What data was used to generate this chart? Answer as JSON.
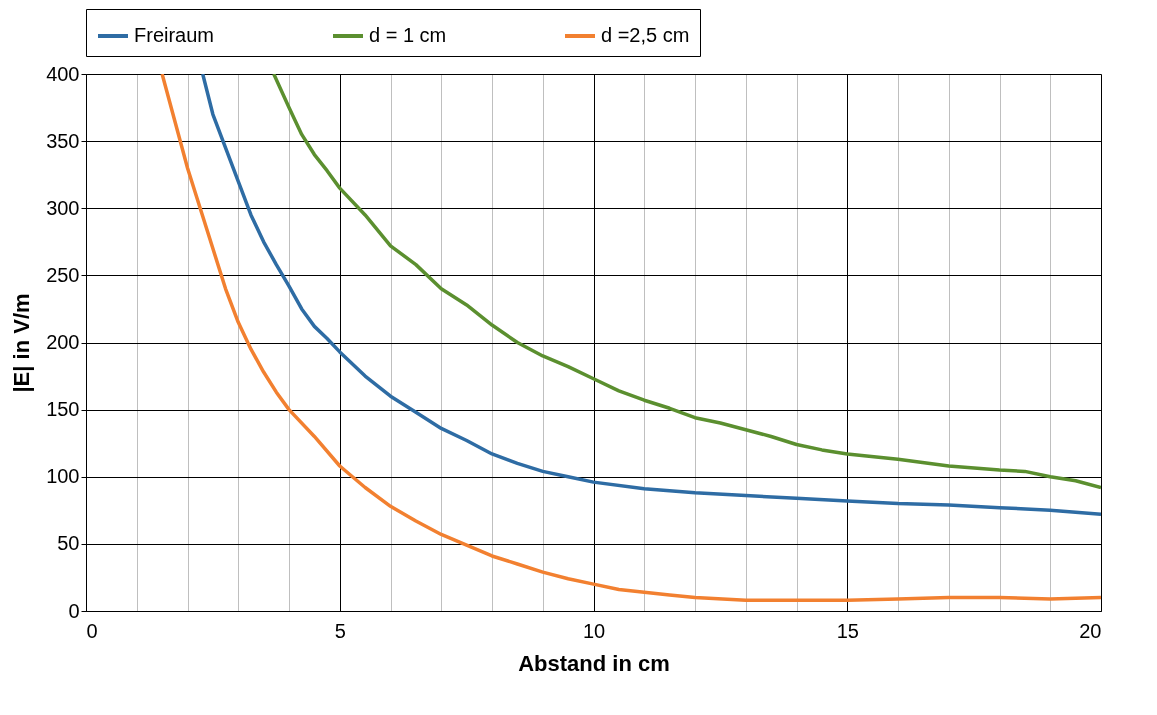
{
  "chart_data": {
    "type": "line",
    "xlabel": "Abstand in cm",
    "ylabel": "|E| in V/m",
    "xlim": [
      0,
      20
    ],
    "ylim": [
      0,
      400
    ],
    "xticks": [
      0,
      {
        "value": 1,
        "label": null
      },
      {
        "value": 2,
        "label": null
      },
      {
        "value": 3,
        "label": null
      },
      {
        "value": 4,
        "label": null
      },
      5,
      {
        "value": 6,
        "label": null
      },
      {
        "value": 7,
        "label": null
      },
      {
        "value": 8,
        "label": null
      },
      {
        "value": 9,
        "label": null
      },
      10,
      {
        "value": 11,
        "label": null
      },
      {
        "value": 12,
        "label": null
      },
      {
        "value": 13,
        "label": null
      },
      {
        "value": 14,
        "label": null
      },
      15,
      {
        "value": 16,
        "label": null
      },
      {
        "value": 17,
        "label": null
      },
      {
        "value": 18,
        "label": null
      },
      {
        "value": 19,
        "label": null
      },
      20
    ],
    "yticks": [
      0,
      50,
      100,
      150,
      200,
      250,
      300,
      350,
      400
    ],
    "grid": true,
    "legend": "top",
    "marker": "none",
    "line_style": "solid",
    "series": [
      {
        "name": "Freiraum",
        "color": "#2e6ca4",
        "x": [
          2.3,
          2.5,
          2.75,
          3,
          3.25,
          3.5,
          3.75,
          4,
          4.25,
          4.5,
          4.75,
          5,
          5.5,
          6,
          6.5,
          7,
          7.5,
          8,
          8.5,
          9,
          9.5,
          10,
          11,
          12,
          13,
          14,
          15,
          16,
          17,
          18,
          19,
          20
        ],
        "values": [
          400,
          370,
          345,
          320,
          295,
          275,
          258,
          242,
          225,
          212,
          203,
          193,
          175,
          160,
          148,
          136,
          127,
          117,
          110,
          104,
          100,
          96,
          91,
          88,
          86,
          84,
          82,
          80,
          79,
          77,
          75,
          72
        ]
      },
      {
        "name": "d = 1 cm",
        "color": "#5b8f2f",
        "x": [
          3.7,
          4,
          4.25,
          4.5,
          4.75,
          5,
          5.5,
          6,
          6.5,
          7,
          7.5,
          8,
          8.5,
          9,
          9.5,
          10,
          10.5,
          11,
          11.5,
          12,
          12.5,
          13,
          13.5,
          14,
          14.5,
          15,
          16,
          17,
          18,
          18.5,
          19,
          19.5,
          20
        ],
        "values": [
          400,
          375,
          355,
          340,
          328,
          315,
          295,
          272,
          258,
          240,
          228,
          213,
          200,
          190,
          182,
          173,
          164,
          157,
          151,
          144,
          140,
          135,
          130,
          124,
          120,
          117,
          113,
          108,
          105,
          104,
          100,
          97,
          92
        ]
      },
      {
        "name": "d =2,5 cm",
        "color": "#f28030",
        "x": [
          1.5,
          1.75,
          2,
          2.25,
          2.5,
          2.75,
          3,
          3.25,
          3.5,
          3.75,
          4,
          4.5,
          5,
          5.5,
          6,
          6.5,
          7,
          7.5,
          8,
          8.5,
          9,
          9.5,
          10,
          10.5,
          11,
          11.5,
          12,
          13,
          14,
          15,
          16,
          17,
          18,
          19,
          20
        ],
        "values": [
          400,
          365,
          330,
          300,
          270,
          240,
          215,
          195,
          178,
          163,
          150,
          130,
          108,
          92,
          78,
          67,
          57,
          49,
          41,
          35,
          29,
          24,
          20,
          16,
          14,
          12,
          10,
          8,
          8,
          8,
          9,
          10,
          10,
          9,
          10
        ]
      }
    ]
  }
}
